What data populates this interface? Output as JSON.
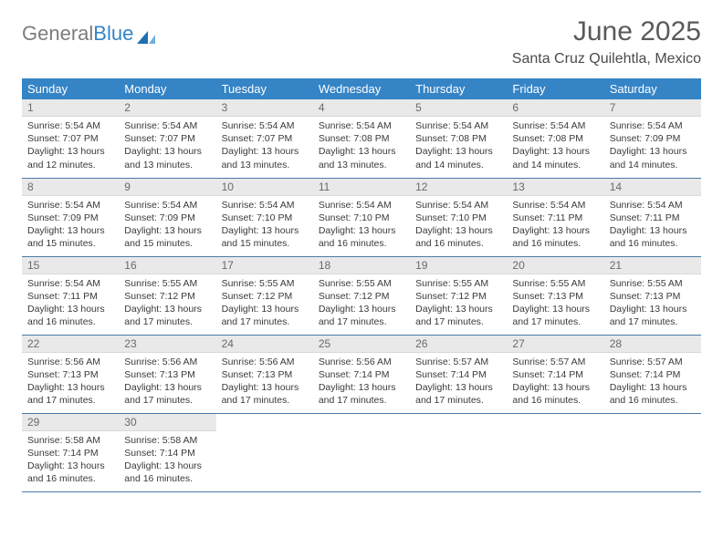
{
  "logo": {
    "text_gray": "General",
    "text_blue": "Blue"
  },
  "title": "June 2025",
  "location": "Santa Cruz Quilehtla, Mexico",
  "header_bg": "#3584c6",
  "header_text": "#ffffff",
  "daynum_bg": "#e9e9e9",
  "rule_color": "#4a7ba8",
  "weekdays": [
    "Sunday",
    "Monday",
    "Tuesday",
    "Wednesday",
    "Thursday",
    "Friday",
    "Saturday"
  ],
  "weeks": [
    [
      {
        "n": "1",
        "sr": "Sunrise: 5:54 AM",
        "ss": "Sunset: 7:07 PM",
        "d1": "Daylight: 13 hours",
        "d2": "and 12 minutes."
      },
      {
        "n": "2",
        "sr": "Sunrise: 5:54 AM",
        "ss": "Sunset: 7:07 PM",
        "d1": "Daylight: 13 hours",
        "d2": "and 13 minutes."
      },
      {
        "n": "3",
        "sr": "Sunrise: 5:54 AM",
        "ss": "Sunset: 7:07 PM",
        "d1": "Daylight: 13 hours",
        "d2": "and 13 minutes."
      },
      {
        "n": "4",
        "sr": "Sunrise: 5:54 AM",
        "ss": "Sunset: 7:08 PM",
        "d1": "Daylight: 13 hours",
        "d2": "and 13 minutes."
      },
      {
        "n": "5",
        "sr": "Sunrise: 5:54 AM",
        "ss": "Sunset: 7:08 PM",
        "d1": "Daylight: 13 hours",
        "d2": "and 14 minutes."
      },
      {
        "n": "6",
        "sr": "Sunrise: 5:54 AM",
        "ss": "Sunset: 7:08 PM",
        "d1": "Daylight: 13 hours",
        "d2": "and 14 minutes."
      },
      {
        "n": "7",
        "sr": "Sunrise: 5:54 AM",
        "ss": "Sunset: 7:09 PM",
        "d1": "Daylight: 13 hours",
        "d2": "and 14 minutes."
      }
    ],
    [
      {
        "n": "8",
        "sr": "Sunrise: 5:54 AM",
        "ss": "Sunset: 7:09 PM",
        "d1": "Daylight: 13 hours",
        "d2": "and 15 minutes."
      },
      {
        "n": "9",
        "sr": "Sunrise: 5:54 AM",
        "ss": "Sunset: 7:09 PM",
        "d1": "Daylight: 13 hours",
        "d2": "and 15 minutes."
      },
      {
        "n": "10",
        "sr": "Sunrise: 5:54 AM",
        "ss": "Sunset: 7:10 PM",
        "d1": "Daylight: 13 hours",
        "d2": "and 15 minutes."
      },
      {
        "n": "11",
        "sr": "Sunrise: 5:54 AM",
        "ss": "Sunset: 7:10 PM",
        "d1": "Daylight: 13 hours",
        "d2": "and 16 minutes."
      },
      {
        "n": "12",
        "sr": "Sunrise: 5:54 AM",
        "ss": "Sunset: 7:10 PM",
        "d1": "Daylight: 13 hours",
        "d2": "and 16 minutes."
      },
      {
        "n": "13",
        "sr": "Sunrise: 5:54 AM",
        "ss": "Sunset: 7:11 PM",
        "d1": "Daylight: 13 hours",
        "d2": "and 16 minutes."
      },
      {
        "n": "14",
        "sr": "Sunrise: 5:54 AM",
        "ss": "Sunset: 7:11 PM",
        "d1": "Daylight: 13 hours",
        "d2": "and 16 minutes."
      }
    ],
    [
      {
        "n": "15",
        "sr": "Sunrise: 5:54 AM",
        "ss": "Sunset: 7:11 PM",
        "d1": "Daylight: 13 hours",
        "d2": "and 16 minutes."
      },
      {
        "n": "16",
        "sr": "Sunrise: 5:55 AM",
        "ss": "Sunset: 7:12 PM",
        "d1": "Daylight: 13 hours",
        "d2": "and 17 minutes."
      },
      {
        "n": "17",
        "sr": "Sunrise: 5:55 AM",
        "ss": "Sunset: 7:12 PM",
        "d1": "Daylight: 13 hours",
        "d2": "and 17 minutes."
      },
      {
        "n": "18",
        "sr": "Sunrise: 5:55 AM",
        "ss": "Sunset: 7:12 PM",
        "d1": "Daylight: 13 hours",
        "d2": "and 17 minutes."
      },
      {
        "n": "19",
        "sr": "Sunrise: 5:55 AM",
        "ss": "Sunset: 7:12 PM",
        "d1": "Daylight: 13 hours",
        "d2": "and 17 minutes."
      },
      {
        "n": "20",
        "sr": "Sunrise: 5:55 AM",
        "ss": "Sunset: 7:13 PM",
        "d1": "Daylight: 13 hours",
        "d2": "and 17 minutes."
      },
      {
        "n": "21",
        "sr": "Sunrise: 5:55 AM",
        "ss": "Sunset: 7:13 PM",
        "d1": "Daylight: 13 hours",
        "d2": "and 17 minutes."
      }
    ],
    [
      {
        "n": "22",
        "sr": "Sunrise: 5:56 AM",
        "ss": "Sunset: 7:13 PM",
        "d1": "Daylight: 13 hours",
        "d2": "and 17 minutes."
      },
      {
        "n": "23",
        "sr": "Sunrise: 5:56 AM",
        "ss": "Sunset: 7:13 PM",
        "d1": "Daylight: 13 hours",
        "d2": "and 17 minutes."
      },
      {
        "n": "24",
        "sr": "Sunrise: 5:56 AM",
        "ss": "Sunset: 7:13 PM",
        "d1": "Daylight: 13 hours",
        "d2": "and 17 minutes."
      },
      {
        "n": "25",
        "sr": "Sunrise: 5:56 AM",
        "ss": "Sunset: 7:14 PM",
        "d1": "Daylight: 13 hours",
        "d2": "and 17 minutes."
      },
      {
        "n": "26",
        "sr": "Sunrise: 5:57 AM",
        "ss": "Sunset: 7:14 PM",
        "d1": "Daylight: 13 hours",
        "d2": "and 17 minutes."
      },
      {
        "n": "27",
        "sr": "Sunrise: 5:57 AM",
        "ss": "Sunset: 7:14 PM",
        "d1": "Daylight: 13 hours",
        "d2": "and 16 minutes."
      },
      {
        "n": "28",
        "sr": "Sunrise: 5:57 AM",
        "ss": "Sunset: 7:14 PM",
        "d1": "Daylight: 13 hours",
        "d2": "and 16 minutes."
      }
    ],
    [
      {
        "n": "29",
        "sr": "Sunrise: 5:58 AM",
        "ss": "Sunset: 7:14 PM",
        "d1": "Daylight: 13 hours",
        "d2": "and 16 minutes."
      },
      {
        "n": "30",
        "sr": "Sunrise: 5:58 AM",
        "ss": "Sunset: 7:14 PM",
        "d1": "Daylight: 13 hours",
        "d2": "and 16 minutes."
      },
      null,
      null,
      null,
      null,
      null
    ]
  ]
}
